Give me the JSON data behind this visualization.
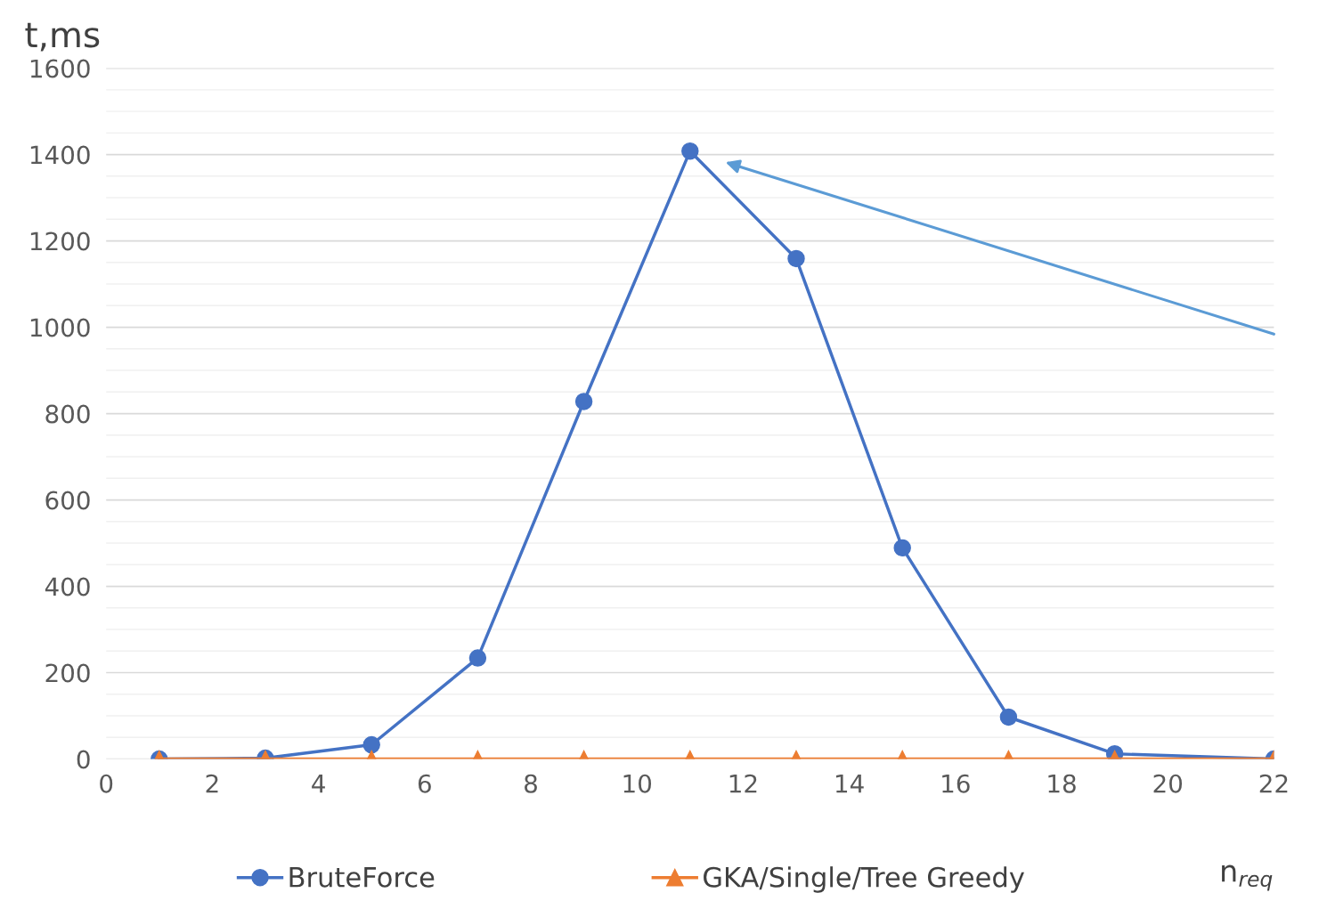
{
  "chart_data": {
    "type": "line",
    "xlabel": "n$_{req}$",
    "ylabel": "t,ms",
    "x": [
      1,
      3,
      5,
      7,
      9,
      11,
      13,
      15,
      17,
      19,
      22
    ],
    "series": [
      {
        "name": "BruteForce",
        "color": "#4472c4",
        "marker": "circle",
        "values": [
          0,
          2,
          33,
          234,
          828,
          1408,
          1159,
          489,
          97,
          12,
          0
        ]
      },
      {
        "name": "GKA/Single/Tree Greedy",
        "color": "#ed7d31",
        "marker": "triangle",
        "values": [
          0,
          0,
          0,
          0,
          0,
          0,
          0,
          0,
          0,
          0,
          0
        ]
      }
    ],
    "xlim": [
      0,
      22
    ],
    "xticks": [
      0,
      2,
      4,
      6,
      8,
      10,
      12,
      14,
      16,
      18,
      20,
      22
    ],
    "ylim": [
      0,
      1600
    ],
    "yticks": [
      0,
      200,
      400,
      600,
      800,
      1000,
      1200,
      1400,
      1600
    ],
    "grid": "y",
    "legend": "bottom",
    "line_style": "solid"
  }
}
